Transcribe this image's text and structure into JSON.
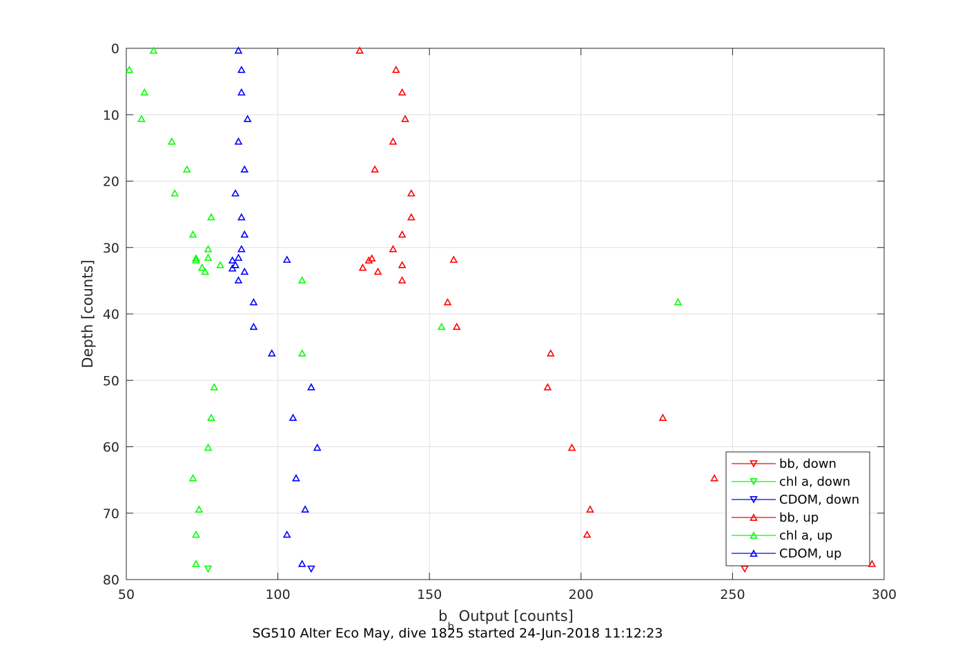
{
  "chart_data": {
    "type": "scatter",
    "caption": "SG510 Alter Eco May, dive 1825 started 24-Jun-2018 11:12:23",
    "xlabel": {
      "main": "b",
      "sub": "b",
      "rest": " Output [counts]"
    },
    "ylabel": "Depth [counts]",
    "xlim": [
      50,
      300
    ],
    "ylim": [
      0,
      80
    ],
    "y_reversed": true,
    "grid": true,
    "legend_position": "bottom-right",
    "x_ticks": [
      "50",
      "100",
      "150",
      "200",
      "250",
      "300"
    ],
    "y_ticks": [
      "0",
      "10",
      "20",
      "30",
      "40",
      "50",
      "60",
      "70",
      "80"
    ],
    "series": [
      {
        "name": "bb, down",
        "color": "#ff0000",
        "marker": "triangle-down",
        "points": [
          [
            254,
            78.4
          ]
        ]
      },
      {
        "name": "chl a, down",
        "color": "#00ff00",
        "marker": "triangle-down",
        "points": [
          [
            77,
            78.4
          ]
        ]
      },
      {
        "name": "CDOM, down",
        "color": "#0000ff",
        "marker": "triangle-down",
        "points": [
          [
            111,
            78.4
          ]
        ]
      },
      {
        "name": "bb, up",
        "color": "#ff0000",
        "marker": "triangle-up",
        "points": [
          [
            127,
            0.3
          ],
          [
            139,
            3.2
          ],
          [
            141,
            6.6
          ],
          [
            142,
            10.6
          ],
          [
            138,
            14.0
          ],
          [
            132,
            18.2
          ],
          [
            144,
            21.8
          ],
          [
            144,
            25.4
          ],
          [
            141,
            28.0
          ],
          [
            138,
            30.2
          ],
          [
            158,
            31.8
          ],
          [
            131,
            31.6
          ],
          [
            130,
            31.9
          ],
          [
            141,
            32.6
          ],
          [
            128,
            33.0
          ],
          [
            133,
            33.6
          ],
          [
            141,
            34.9
          ],
          [
            156,
            38.2
          ],
          [
            159,
            41.9
          ],
          [
            190,
            45.9
          ],
          [
            189,
            51.0
          ],
          [
            227,
            55.6
          ],
          [
            197,
            60.1
          ],
          [
            244,
            64.7
          ],
          [
            203,
            69.4
          ],
          [
            202,
            73.2
          ],
          [
            296,
            77.6
          ]
        ]
      },
      {
        "name": "chl a, up",
        "color": "#00ff00",
        "marker": "triangle-up",
        "points": [
          [
            59,
            0.3
          ],
          [
            51,
            3.2
          ],
          [
            56,
            6.6
          ],
          [
            55,
            10.6
          ],
          [
            65,
            14.0
          ],
          [
            70,
            18.2
          ],
          [
            66,
            21.8
          ],
          [
            78,
            25.4
          ],
          [
            72,
            28.0
          ],
          [
            77,
            30.2
          ],
          [
            77,
            31.5
          ],
          [
            73,
            31.6
          ],
          [
            73,
            31.9
          ],
          [
            81,
            32.6
          ],
          [
            75,
            33.0
          ],
          [
            76,
            33.6
          ],
          [
            108,
            34.9
          ],
          [
            232,
            38.2
          ],
          [
            154,
            41.9
          ],
          [
            108,
            45.9
          ],
          [
            79,
            51.0
          ],
          [
            78,
            55.6
          ],
          [
            77,
            60.1
          ],
          [
            72,
            64.7
          ],
          [
            74,
            69.4
          ],
          [
            73,
            73.2
          ],
          [
            73,
            77.6
          ]
        ]
      },
      {
        "name": "CDOM, up",
        "color": "#0000ff",
        "marker": "triangle-up",
        "points": [
          [
            87,
            0.3
          ],
          [
            88,
            3.2
          ],
          [
            88,
            6.6
          ],
          [
            90,
            10.6
          ],
          [
            87,
            14.0
          ],
          [
            89,
            18.2
          ],
          [
            86,
            21.8
          ],
          [
            88,
            25.4
          ],
          [
            89,
            28.0
          ],
          [
            88,
            30.2
          ],
          [
            103,
            31.8
          ],
          [
            87,
            31.5
          ],
          [
            85,
            31.9
          ],
          [
            86,
            32.6
          ],
          [
            85,
            33.1
          ],
          [
            89,
            33.6
          ],
          [
            87,
            34.9
          ],
          [
            92,
            38.2
          ],
          [
            92,
            41.9
          ],
          [
            98,
            45.9
          ],
          [
            111,
            51.0
          ],
          [
            105,
            55.6
          ],
          [
            113,
            60.1
          ],
          [
            106,
            64.7
          ],
          [
            109,
            69.4
          ],
          [
            103,
            73.2
          ],
          [
            108,
            77.6
          ]
        ]
      }
    ]
  }
}
